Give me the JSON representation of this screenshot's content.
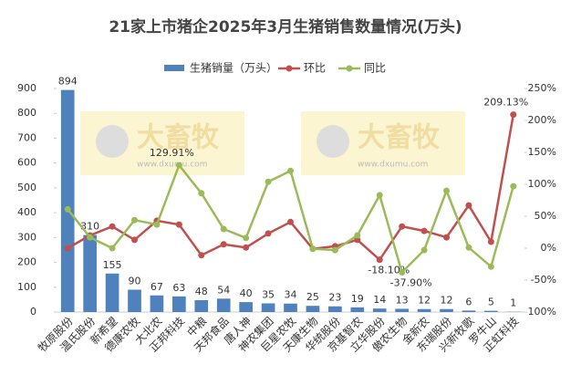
{
  "chart_data": {
    "type": "bar-line",
    "title": "21家上市猪企2025年3月生猪销售数量情况(万头)",
    "watermark": [
      "大畜牧",
      "www.dxumu.com"
    ],
    "categories": [
      "牧原股份",
      "温氏股份",
      "新希望",
      "德康农牧",
      "大北农",
      "正邦科技",
      "中粮",
      "天邦食品",
      "唐人神",
      "神农集团",
      "巨星农牧",
      "天康生物",
      "华统股份",
      "京基智农",
      "立华股份",
      "傲农生物",
      "金新农",
      "东瑞股份",
      "兴新牧歌",
      "罗牛山",
      "正虹科技"
    ],
    "series": [
      {
        "name": "生猪销量（万头）",
        "kind": "bar",
        "color": "#4f81bd",
        "values": [
          894,
          310,
          155,
          90,
          67,
          63,
          48,
          54,
          40,
          35,
          34,
          25,
          23,
          19,
          14,
          13,
          12,
          12,
          6,
          5,
          1
        ]
      },
      {
        "name": "环比",
        "kind": "line",
        "axis": "y2",
        "color": "#c0504d",
        "values": [
          0,
          20,
          34,
          13,
          43,
          37,
          -11,
          6,
          1,
          23,
          41,
          -1,
          3,
          13,
          -18.1,
          34,
          27,
          17,
          67,
          10,
          209.13
        ],
        "value_labels": [
          null,
          null,
          null,
          null,
          null,
          null,
          null,
          null,
          null,
          null,
          null,
          null,
          null,
          null,
          "-18.10%",
          null,
          null,
          null,
          null,
          null,
          "209.13%"
        ]
      },
      {
        "name": "同比",
        "kind": "line",
        "axis": "y2",
        "color": "#9bbb59",
        "values": [
          61,
          17,
          0,
          44,
          37,
          129.91,
          86,
          30,
          16,
          104,
          121,
          -1,
          -3,
          20,
          83,
          -37.9,
          -3,
          90,
          1,
          -29,
          97
        ],
        "value_labels": [
          null,
          null,
          null,
          null,
          null,
          "129.91%",
          null,
          null,
          null,
          null,
          null,
          null,
          null,
          null,
          null,
          "-37.90%",
          null,
          null,
          null,
          null,
          null
        ]
      }
    ],
    "ylim": [
      0,
      900
    ],
    "yticks": [
      0,
      100,
      200,
      300,
      400,
      500,
      600,
      700,
      800,
      900
    ],
    "y2lim": [
      -100,
      250
    ],
    "y2ticks": [
      {
        "value": -100,
        "label": "-100%"
      },
      {
        "value": -50,
        "label": "-50%"
      },
      {
        "value": 0,
        "label": "0%"
      },
      {
        "value": 50,
        "label": "50%"
      },
      {
        "value": 100,
        "label": "100%"
      },
      {
        "value": 150,
        "label": "150%"
      },
      {
        "value": 200,
        "label": "200%"
      },
      {
        "value": 250,
        "label": "250%"
      }
    ],
    "legend": "top"
  }
}
